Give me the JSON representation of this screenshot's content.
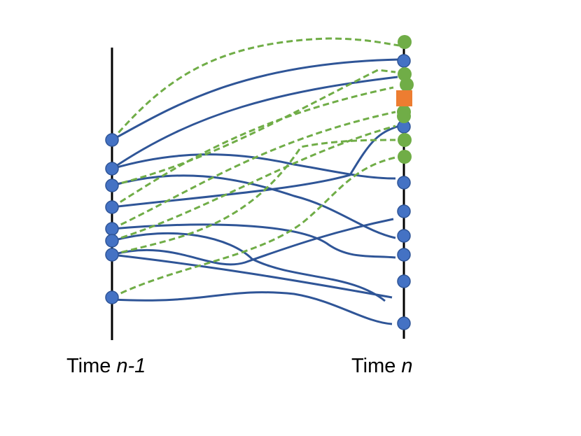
{
  "labels": [
    {
      "word": "Time",
      "var": "n-1"
    },
    {
      "word": "Time",
      "var": "n"
    }
  ]
}
